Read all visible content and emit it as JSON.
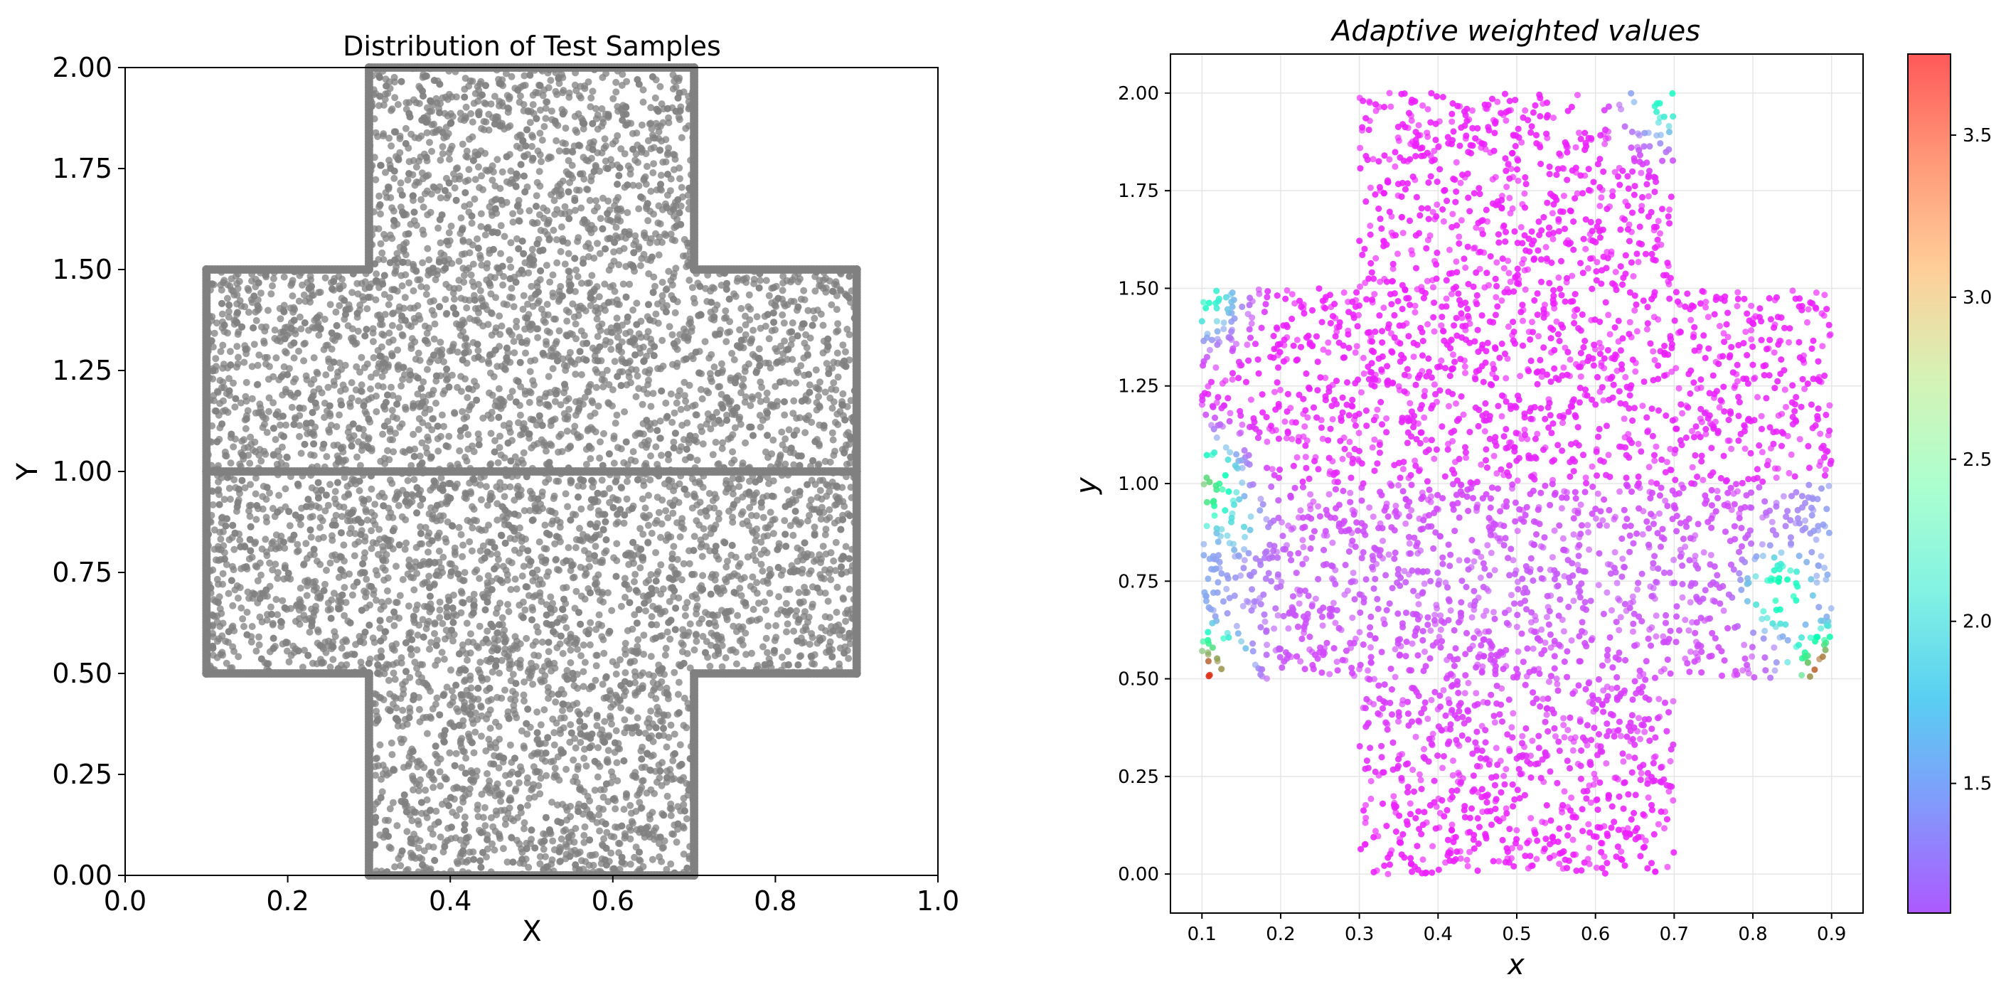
{
  "chart_data": [
    {
      "type": "scatter",
      "title": "Distribution of Test Samples",
      "xlabel": "X",
      "ylabel": "Y",
      "xlim": [
        0.0,
        1.0
      ],
      "ylim": [
        0.0,
        2.0
      ],
      "xticks": [
        "0.0",
        "0.2",
        "0.4",
        "0.6",
        "0.8",
        "1.0"
      ],
      "yticks": [
        "0.00",
        "0.25",
        "0.50",
        "0.75",
        "1.00",
        "1.25",
        "1.50",
        "1.75",
        "2.00"
      ],
      "grid": false,
      "point_color": "#808080",
      "domain": {
        "shape": "cross",
        "vertical_bar": {
          "x": [
            0.3,
            0.7
          ],
          "y": [
            0.0,
            2.0
          ]
        },
        "horizontal_bar": {
          "x": [
            0.1,
            0.9
          ],
          "y": [
            0.5,
            1.5
          ]
        },
        "interface_line_y": 1.0
      }
    },
    {
      "type": "scatter",
      "title": "Adaptive weighted values",
      "xlabel": "x",
      "ylabel": "y",
      "xlim": [
        0.06,
        0.94
      ],
      "ylim": [
        -0.1,
        2.1
      ],
      "xticks": [
        "0.1",
        "0.2",
        "0.3",
        "0.4",
        "0.5",
        "0.6",
        "0.7",
        "0.8",
        "0.9"
      ],
      "yticks": [
        "0.00",
        "0.25",
        "0.50",
        "0.75",
        "1.00",
        "1.25",
        "1.50",
        "1.75",
        "2.00"
      ],
      "grid": true,
      "colormap": "rainbow",
      "colorbar": {
        "range": [
          1.1,
          3.75
        ],
        "ticks": [
          "1.5",
          "2.0",
          "2.5",
          "3.0",
          "3.5"
        ]
      },
      "value_field": {
        "base": 1.2,
        "hotspots": [
          {
            "x": 0.835,
            "y": 0.72,
            "value": 2.5
          },
          {
            "x": 0.14,
            "y": 0.9,
            "value": 2.0
          },
          {
            "x": 0.1,
            "y": 0.99,
            "value": 3.0
          },
          {
            "x": 0.895,
            "y": 0.51,
            "value": 3.7
          },
          {
            "x": 0.105,
            "y": 0.51,
            "value": 3.6
          },
          {
            "x": 0.69,
            "y": 1.99,
            "value": 2.3
          },
          {
            "x": 0.1,
            "y": 1.48,
            "value": 2.3
          }
        ]
      }
    }
  ]
}
